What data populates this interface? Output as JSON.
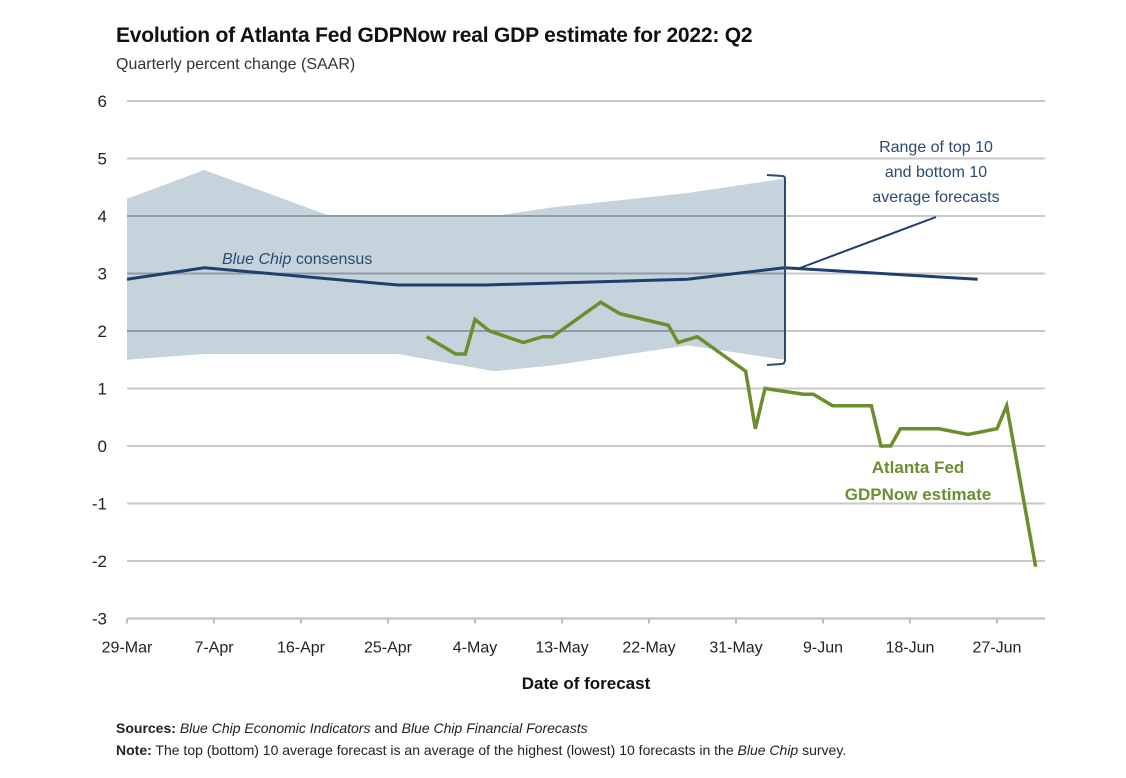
{
  "chart_data": {
    "type": "line",
    "title": "Evolution of Atlanta Fed GDPNow real GDP estimate for 2022: Q2",
    "subtitle": "Quarterly percent change (SAAR)",
    "xlabel": "Date of forecast",
    "ylabel": "",
    "ylim": [
      -3,
      6
    ],
    "yticks": [
      "6",
      "5",
      "4",
      "3",
      "2",
      "1",
      "0",
      "-1",
      "-2",
      "-3"
    ],
    "ytick_values": [
      6,
      5,
      4,
      3,
      2,
      1,
      0,
      -1,
      -2,
      -3
    ],
    "x_start_date": "29-Mar",
    "x_range_days": [
      0,
      95
    ],
    "xticks": [
      "29-Mar",
      "7-Apr",
      "16-Apr",
      "25-Apr",
      "4-May",
      "13-May",
      "22-May",
      "31-May",
      "9-Jun",
      "18-Jun",
      "27-Jun"
    ],
    "xtick_days": [
      0,
      9,
      18,
      27,
      36,
      45,
      54,
      63,
      72,
      81,
      90
    ],
    "grid": true,
    "colors": {
      "range_band": "#c5d3dc",
      "blue_chip": "#1f3f6e",
      "gdpnow": "#6b8e2f",
      "grid": "#c8c8c8",
      "grid_in_band": "#8e9ca6",
      "annotation_blue": "#2a4a72"
    },
    "series": [
      {
        "name": "Blue Chip consensus",
        "type": "line",
        "x_days": [
          0,
          8,
          28,
          37,
          58,
          68,
          88
        ],
        "values": [
          2.9,
          3.1,
          2.8,
          2.8,
          2.9,
          3.1,
          2.9
        ]
      },
      {
        "name": "Range of top 10 and bottom 10 average forecasts",
        "type": "band",
        "x_days": [
          0,
          8,
          21,
          28,
          38,
          44,
          58,
          68
        ],
        "upper": [
          4.3,
          4.8,
          4.0,
          4.0,
          4.0,
          4.15,
          4.4,
          4.65
        ],
        "lower": [
          1.5,
          1.6,
          1.6,
          1.6,
          1.3,
          1.4,
          1.75,
          1.5
        ]
      },
      {
        "name": "Atlanta Fed GDPNow estimate",
        "type": "line",
        "x_days": [
          31,
          34,
          35,
          36,
          37.5,
          41,
          43,
          44,
          49,
          51,
          56,
          57,
          59,
          64,
          65,
          66,
          70,
          71,
          73,
          77,
          78,
          79,
          80,
          84,
          87,
          90,
          91,
          94
        ],
        "values": [
          1.9,
          1.6,
          1.6,
          2.2,
          2.0,
          1.8,
          1.9,
          1.9,
          2.5,
          2.3,
          2.1,
          1.8,
          1.9,
          1.3,
          0.3,
          1.0,
          0.9,
          0.9,
          0.7,
          0.7,
          0.0,
          0.0,
          0.3,
          0.3,
          0.2,
          0.3,
          0.7,
          -2.1
        ]
      }
    ],
    "annotations": {
      "blue_chip_label_italic": "Blue Chip",
      "blue_chip_label_rest": " consensus",
      "range_label": [
        "Range of top 10",
        "and bottom 10",
        "average forecasts"
      ],
      "gdpnow_label": [
        "Atlanta Fed",
        "GDPNow estimate"
      ]
    }
  },
  "footer": {
    "sources_label": "Sources:",
    "sources_part1": "Blue Chip Economic Indicators",
    "sources_and": " and ",
    "sources_part2": "Blue Chip Financial Forecasts",
    "note_label": "Note:",
    "note_text": " The top (bottom) 10 average forecast is an average of the highest (lowest) 10 forecasts in the ",
    "note_italic": "Blue Chip",
    "note_end": " survey."
  }
}
